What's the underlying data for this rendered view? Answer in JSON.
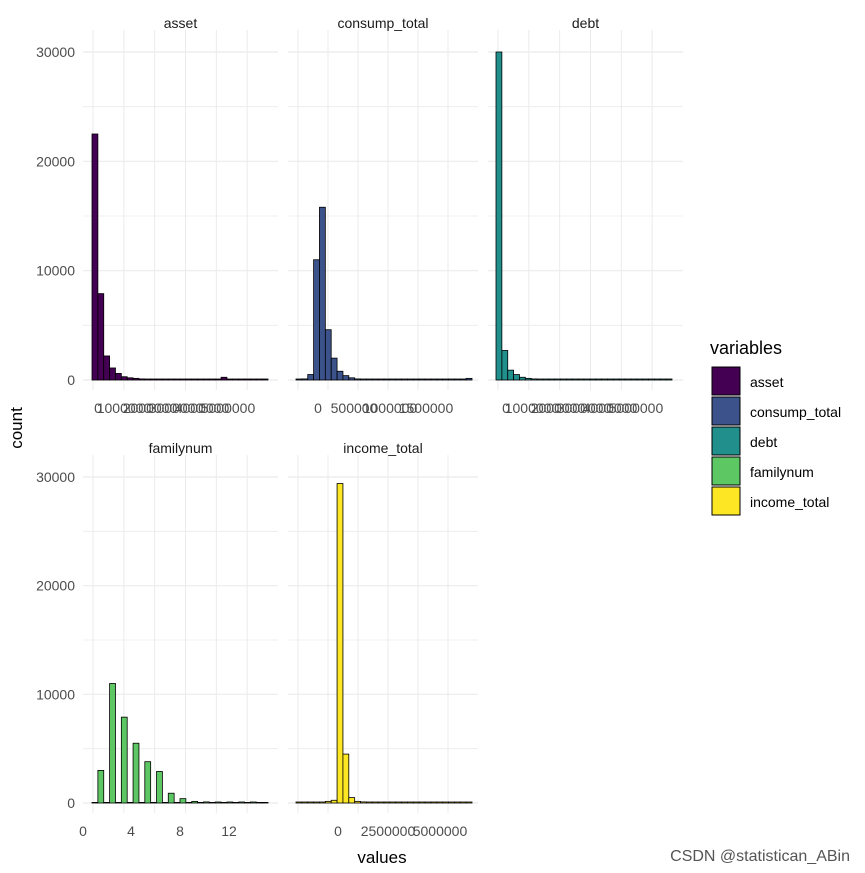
{
  "chart_data": {
    "type": "bar",
    "xlabel": "values",
    "ylabel": "count",
    "y_ticks": [
      0,
      10000,
      20000,
      30000
    ],
    "grid": true,
    "legend": {
      "title": "variables",
      "position": "right",
      "entries": [
        "asset",
        "consump_total",
        "debt",
        "familynum",
        "income_total"
      ]
    },
    "colors": {
      "asset": "#440154",
      "consump_total": "#3b528b",
      "debt": "#21908c",
      "familynum": "#5dc863",
      "income_total": "#fde725",
      "grid": "#ebebeb",
      "bar_outline": "#000000"
    },
    "panels": [
      {
        "name": "asset",
        "ylim": [
          0,
          32000
        ],
        "x_tick_labels": [
          "0",
          "1000000",
          "2000000",
          "3000000",
          "4000000",
          "5000000"
        ],
        "bars": [
          22500,
          7900,
          2200,
          1100,
          600,
          300,
          200,
          150,
          100,
          80,
          60,
          50,
          40,
          30,
          30,
          20,
          20,
          15,
          15,
          10,
          10,
          10,
          250,
          8,
          8,
          5,
          5,
          5,
          5,
          5
        ]
      },
      {
        "name": "consump_total",
        "ylim": [
          0,
          32000
        ],
        "x_tick_labels": [
          "0",
          "500000",
          "1000000",
          "1500000"
        ],
        "bars": [
          30,
          100,
          500,
          11000,
          15800,
          4600,
          2000,
          800,
          400,
          200,
          100,
          80,
          60,
          40,
          30,
          25,
          20,
          15,
          15,
          10,
          10,
          10,
          8,
          8,
          8,
          5,
          5,
          5,
          5,
          150
        ]
      },
      {
        "name": "debt",
        "ylim": [
          0,
          32000
        ],
        "x_tick_labels": [
          "0",
          "1000000",
          "2000000",
          "3000000",
          "4000000",
          "5000000"
        ],
        "bars": [
          30000,
          2700,
          900,
          500,
          250,
          150,
          100,
          80,
          60,
          40,
          30,
          25,
          20,
          20,
          15,
          15,
          10,
          10,
          10,
          8,
          8,
          8,
          5,
          5,
          5,
          5,
          5,
          5,
          5,
          5
        ]
      },
      {
        "name": "familynum",
        "ylim": [
          0,
          32000
        ],
        "x_tick_labels": [
          "0",
          "4",
          "8",
          "12"
        ],
        "bars": [
          0,
          3000,
          0,
          11000,
          0,
          7900,
          0,
          5500,
          0,
          3800,
          0,
          2900,
          0,
          900,
          0,
          400,
          0,
          150,
          0,
          100,
          0,
          80,
          0,
          50,
          0,
          30,
          0,
          10,
          0,
          0
        ]
      },
      {
        "name": "income_total",
        "ylim": [
          0,
          32000
        ],
        "x_tick_labels": [
          "0",
          "2500000",
          "5000000"
        ],
        "bars": [
          5,
          10,
          15,
          30,
          60,
          150,
          250,
          29400,
          4500,
          500,
          150,
          100,
          60,
          40,
          30,
          25,
          20,
          15,
          10,
          10,
          8,
          8,
          8,
          5,
          5,
          5,
          5,
          5,
          5,
          5
        ]
      }
    ]
  },
  "watermark": "CSDN @statistican_ABin"
}
